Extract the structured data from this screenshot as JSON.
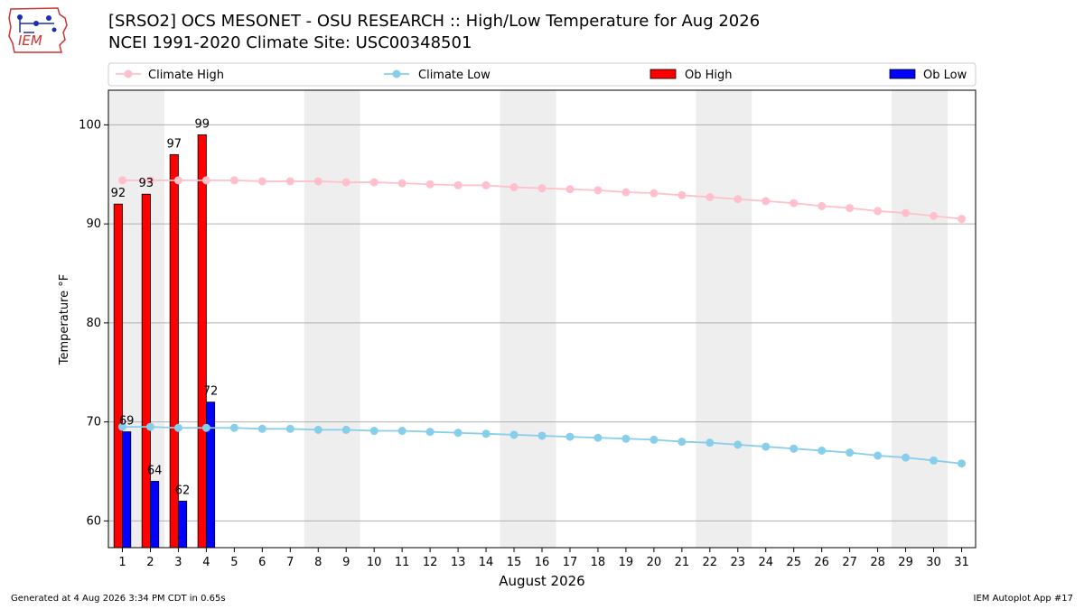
{
  "header": {
    "title_line1": "[SRSO2] OCS MESONET - OSU RESEARCH :: High/Low Temperature for Aug 2026",
    "title_line2": "NCEI 1991-2020 Climate Site: USC00348501",
    "logo_text": "IEM"
  },
  "footer": {
    "generated": "Generated at 4 Aug 2026 3:34 PM CDT in 0.65s",
    "app": "IEM Autoplot App #17"
  },
  "chart_data": {
    "type": "bar",
    "xlabel": "August 2026",
    "ylabel": "Temperature °F",
    "ylim": [
      57.3,
      103.5
    ],
    "yticks": [
      60,
      70,
      80,
      90,
      100
    ],
    "grid": "horizontal",
    "legend_placement": "top",
    "weekend_shading_days": [
      [
        1,
        2
      ],
      [
        8,
        9
      ],
      [
        15,
        16
      ],
      [
        22,
        23
      ],
      [
        29,
        30
      ]
    ],
    "days": [
      1,
      2,
      3,
      4,
      5,
      6,
      7,
      8,
      9,
      10,
      11,
      12,
      13,
      14,
      15,
      16,
      17,
      18,
      19,
      20,
      21,
      22,
      23,
      24,
      25,
      26,
      27,
      28,
      29,
      30,
      31
    ],
    "series": [
      {
        "name": "Climate High",
        "kind": "line",
        "color": "#ffc0cb",
        "values": [
          94.4,
          94.4,
          94.4,
          94.4,
          94.4,
          94.3,
          94.3,
          94.3,
          94.2,
          94.2,
          94.1,
          94.0,
          93.9,
          93.9,
          93.7,
          93.6,
          93.5,
          93.4,
          93.2,
          93.1,
          92.9,
          92.7,
          92.5,
          92.3,
          92.1,
          91.8,
          91.6,
          91.3,
          91.1,
          90.8,
          90.5
        ]
      },
      {
        "name": "Climate Low",
        "kind": "line",
        "color": "#87ceeb",
        "values": [
          69.5,
          69.5,
          69.4,
          69.4,
          69.4,
          69.3,
          69.3,
          69.2,
          69.2,
          69.1,
          69.1,
          69.0,
          68.9,
          68.8,
          68.7,
          68.6,
          68.5,
          68.4,
          68.3,
          68.2,
          68.0,
          67.9,
          67.7,
          67.5,
          67.3,
          67.1,
          66.9,
          66.6,
          66.4,
          66.1,
          65.8
        ]
      },
      {
        "name": "Ob High",
        "kind": "bar",
        "color": "#ff0000",
        "values": [
          92,
          93,
          97,
          99
        ],
        "labels": [
          "92",
          "93",
          "97",
          "99"
        ]
      },
      {
        "name": "Ob Low",
        "kind": "bar",
        "color": "#0000ff",
        "values": [
          69,
          64,
          62,
          72
        ],
        "labels": [
          "69",
          "64",
          "62",
          "72"
        ]
      }
    ]
  }
}
